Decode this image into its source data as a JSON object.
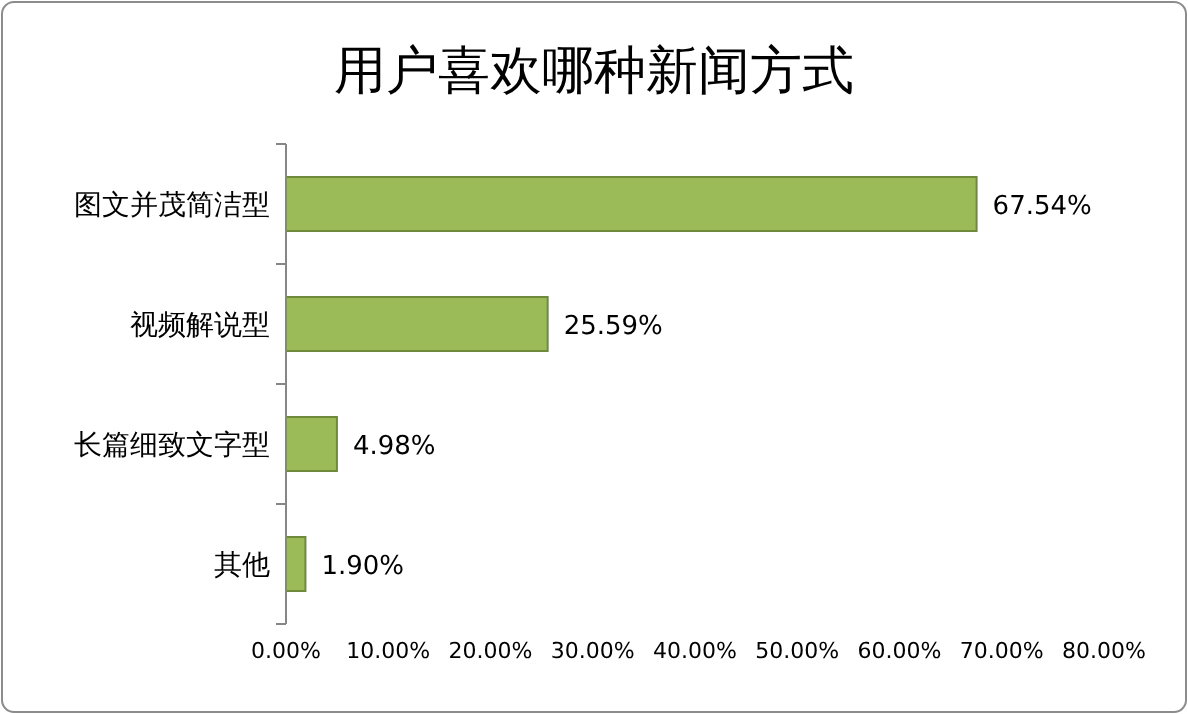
{
  "chart_data": {
    "type": "bar",
    "orientation": "horizontal",
    "title": "用户喜欢哪种新闻方式",
    "categories": [
      "图文并茂简洁型",
      "视频解说型",
      "长篇细致文字型",
      "其他"
    ],
    "values": [
      67.54,
      25.59,
      4.98,
      1.9
    ],
    "value_labels": [
      "67.54%",
      "25.59%",
      "4.98%",
      "1.90%"
    ],
    "color": "#9bbb59",
    "xlim": [
      0,
      80
    ],
    "xticks": [
      {
        "value": 0,
        "label": "0.00%"
      },
      {
        "value": 10,
        "label": "10.00%"
      },
      {
        "value": 20,
        "label": "20.00%"
      },
      {
        "value": 30,
        "label": "30.00%"
      },
      {
        "value": 40,
        "label": "40.00%"
      },
      {
        "value": 50,
        "label": "50.00%"
      },
      {
        "value": 60,
        "label": "60.00%"
      },
      {
        "value": 70,
        "label": "70.00%"
      },
      {
        "value": 80,
        "label": "80.00%"
      }
    ],
    "grid": false
  }
}
